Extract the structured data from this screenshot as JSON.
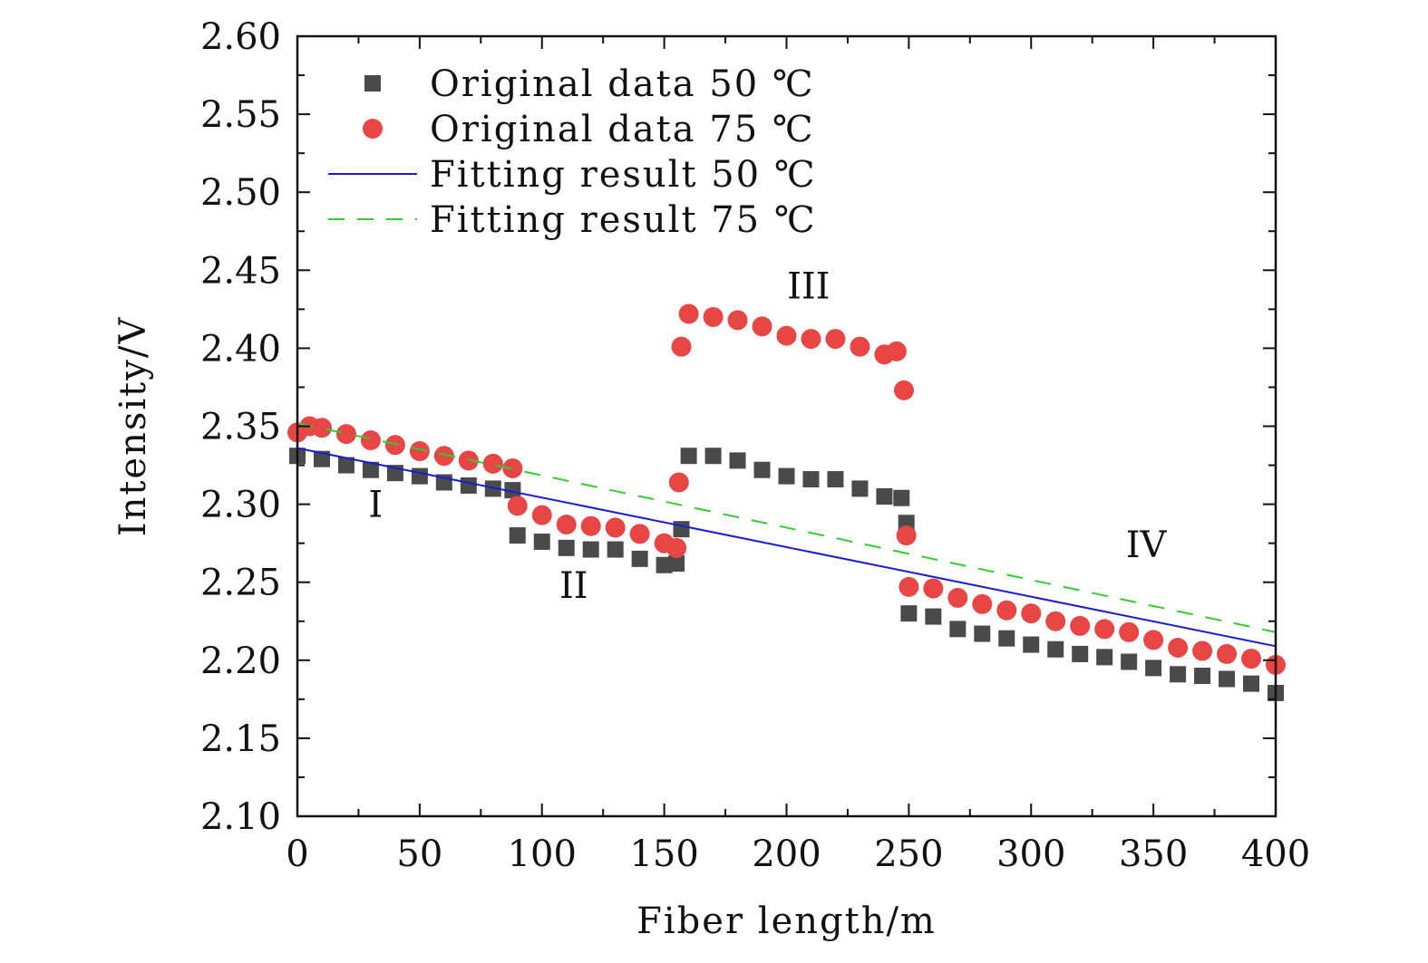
{
  "chart_data": {
    "type": "scatter",
    "xlabel": "Fiber length/m",
    "ylabel": "Intensity/V",
    "xlim": [
      0,
      400
    ],
    "ylim": [
      2.1,
      2.6
    ],
    "x_ticks": [
      "0",
      "50",
      "100",
      "150",
      "200",
      "250",
      "300",
      "350",
      "400"
    ],
    "y_ticks": [
      "2.10",
      "2.15",
      "2.20",
      "2.25",
      "2.30",
      "2.35",
      "2.40",
      "2.45",
      "2.50",
      "2.55",
      "2.60"
    ],
    "grid": false,
    "legend_position": "top-left",
    "series": [
      {
        "name": "Original data 50 ℃",
        "kind": "scatter",
        "marker": "square",
        "color": "#4a4a4a",
        "x": [
          0,
          10,
          20,
          30,
          40,
          50,
          60,
          70,
          80,
          88,
          90,
          100,
          110,
          120,
          130,
          140,
          150,
          155,
          157,
          160,
          170,
          180,
          190,
          200,
          210,
          220,
          230,
          240,
          247,
          249,
          250,
          260,
          270,
          280,
          290,
          300,
          310,
          320,
          330,
          340,
          350,
          360,
          370,
          380,
          390,
          400
        ],
        "y": [
          2.331,
          2.329,
          2.325,
          2.322,
          2.32,
          2.318,
          2.314,
          2.312,
          2.31,
          2.309,
          2.28,
          2.276,
          2.272,
          2.271,
          2.271,
          2.265,
          2.261,
          2.262,
          2.284,
          2.331,
          2.331,
          2.328,
          2.322,
          2.318,
          2.316,
          2.316,
          2.31,
          2.305,
          2.304,
          2.288,
          2.23,
          2.228,
          2.22,
          2.217,
          2.214,
          2.21,
          2.207,
          2.204,
          2.202,
          2.199,
          2.195,
          2.191,
          2.19,
          2.188,
          2.185,
          2.179
        ]
      },
      {
        "name": "Original data 75 ℃",
        "kind": "scatter",
        "marker": "circle",
        "color": "#e84545",
        "x": [
          0,
          5,
          10,
          20,
          30,
          40,
          50,
          60,
          70,
          80,
          88,
          90,
          100,
          110,
          120,
          130,
          140,
          150,
          155,
          156,
          157,
          160,
          170,
          180,
          190,
          200,
          210,
          220,
          230,
          240,
          245,
          248,
          249,
          250,
          260,
          270,
          280,
          290,
          300,
          310,
          320,
          330,
          340,
          350,
          360,
          370,
          380,
          390,
          400
        ],
        "y": [
          2.346,
          2.35,
          2.349,
          2.345,
          2.341,
          2.338,
          2.334,
          2.331,
          2.328,
          2.326,
          2.323,
          2.299,
          2.293,
          2.287,
          2.286,
          2.285,
          2.281,
          2.275,
          2.272,
          2.314,
          2.401,
          2.422,
          2.42,
          2.418,
          2.414,
          2.408,
          2.406,
          2.406,
          2.401,
          2.396,
          2.398,
          2.373,
          2.28,
          2.247,
          2.246,
          2.24,
          2.236,
          2.232,
          2.23,
          2.225,
          2.222,
          2.22,
          2.218,
          2.213,
          2.208,
          2.206,
          2.204,
          2.201,
          2.197
        ]
      },
      {
        "name": "Fitting result 50 ℃",
        "kind": "line",
        "style": "solid",
        "color": "#1a1ad6",
        "x": [
          0,
          400
        ],
        "y": [
          2.336,
          2.209
        ]
      },
      {
        "name": "Fitting result 75 ℃",
        "kind": "line",
        "style": "dashed",
        "color": "#33cc33",
        "x": [
          0,
          400
        ],
        "y": [
          2.352,
          2.218
        ]
      }
    ],
    "annotations": [
      {
        "text": "I",
        "x": 32,
        "y": 2.292
      },
      {
        "text": "II",
        "x": 113,
        "y": 2.24
      },
      {
        "text": "III",
        "x": 209,
        "y": 2.432
      },
      {
        "text": "IV",
        "x": 347,
        "y": 2.266
      }
    ]
  }
}
